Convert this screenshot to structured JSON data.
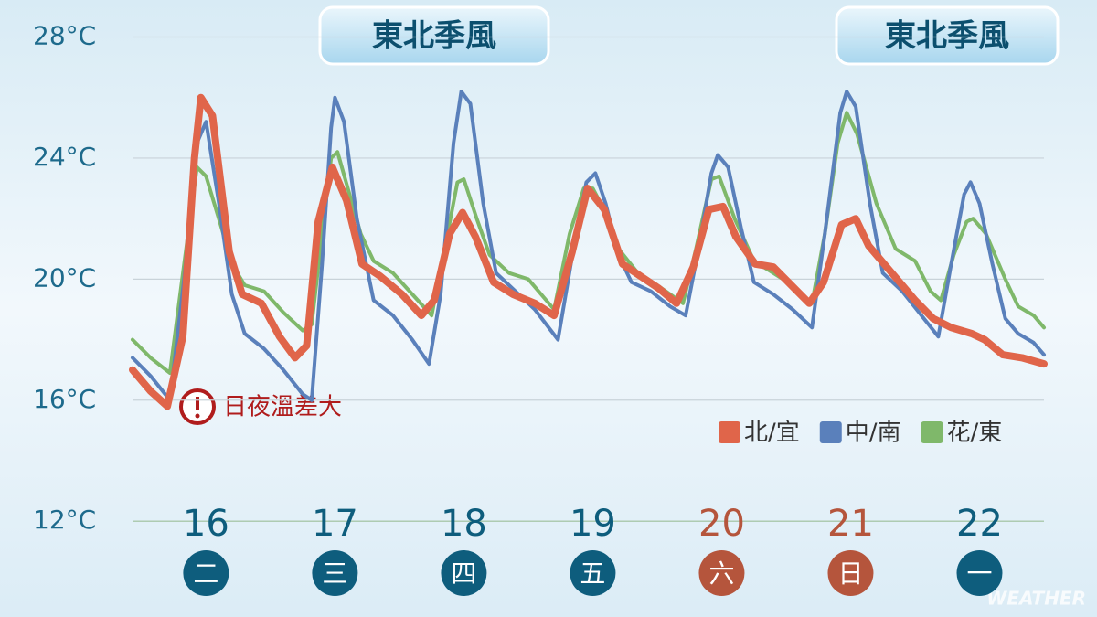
{
  "chart_data": {
    "type": "line",
    "annotations": [
      "東北季風",
      "東北季風"
    ],
    "note": "日夜溫差大",
    "watermark": "WEATHER",
    "xlim": [
      15.43,
      22.5
    ],
    "xticks": [
      16,
      17,
      18,
      19,
      20,
      21,
      22
    ],
    "weekdays": [
      "二",
      "三",
      "四",
      "五",
      "六",
      "日",
      "一"
    ],
    "weekday_colors": [
      "#0e5d7d",
      "#0e5d7d",
      "#0e5d7d",
      "#0e5d7d",
      "#b5553c",
      "#b5553c",
      "#0e5d7d"
    ],
    "ylim": [
      11.1,
      28.62
    ],
    "yticks": [
      {
        "value": 28,
        "label": "28°C"
      },
      {
        "value": 24,
        "label": "24°C"
      },
      {
        "value": 20,
        "label": "20°C"
      },
      {
        "value": 16,
        "label": "16°C"
      },
      {
        "value": 12,
        "label": "12°C"
      }
    ],
    "grid": true,
    "legend": "lower right",
    "series": [
      {
        "name": "北/宜",
        "color": "#e0654a",
        "x": [
          15.43,
          15.57,
          15.7,
          15.82,
          15.91,
          15.96,
          16.05,
          16.18,
          16.28,
          16.43,
          16.57,
          16.69,
          16.78,
          16.87,
          16.98,
          17.09,
          17.21,
          17.35,
          17.52,
          17.67,
          17.77,
          17.89,
          17.99,
          18.09,
          18.23,
          18.38,
          18.55,
          18.7,
          18.84,
          18.96,
          19.09,
          19.23,
          19.37,
          19.51,
          19.65,
          19.78,
          19.9,
          20.01,
          20.11,
          20.26,
          20.4,
          20.54,
          20.68,
          20.79,
          20.93,
          21.04,
          21.14,
          21.32,
          21.5,
          21.64,
          21.78,
          21.94,
          22.04,
          22.18,
          22.33,
          22.5
        ],
        "values": [
          17.0,
          16.3,
          15.8,
          18.1,
          24.0,
          26.0,
          25.4,
          20.9,
          19.5,
          19.2,
          18.1,
          17.4,
          17.8,
          21.9,
          23.7,
          22.6,
          20.5,
          20.1,
          19.5,
          18.8,
          19.3,
          21.5,
          22.2,
          21.4,
          19.9,
          19.5,
          19.2,
          18.8,
          20.9,
          23.0,
          22.3,
          20.5,
          20.1,
          19.7,
          19.2,
          20.4,
          22.3,
          22.4,
          21.4,
          20.5,
          20.4,
          19.8,
          19.2,
          19.9,
          21.8,
          22.0,
          21.1,
          20.2,
          19.3,
          18.7,
          18.4,
          18.2,
          18.0,
          17.5,
          17.4,
          17.2
        ]
      },
      {
        "name": "中/南",
        "color": "#5a80bb",
        "x": [
          15.43,
          15.57,
          15.72,
          15.83,
          15.93,
          16.0,
          16.1,
          16.2,
          16.3,
          16.45,
          16.6,
          16.75,
          16.82,
          16.9,
          16.97,
          17.0,
          17.07,
          17.17,
          17.3,
          17.45,
          17.6,
          17.73,
          17.82,
          17.92,
          17.98,
          18.05,
          18.15,
          18.25,
          18.4,
          18.55,
          18.73,
          18.85,
          18.95,
          19.02,
          19.1,
          19.2,
          19.3,
          19.45,
          19.6,
          19.72,
          19.82,
          19.92,
          19.97,
          20.05,
          20.15,
          20.25,
          20.4,
          20.55,
          20.7,
          20.8,
          20.92,
          20.97,
          21.04,
          21.15,
          21.25,
          21.4,
          21.55,
          21.68,
          21.78,
          21.88,
          21.93,
          22.0,
          22.1,
          22.2,
          22.3,
          22.42,
          22.5
        ],
        "values": [
          17.4,
          16.8,
          16.0,
          20.0,
          24.5,
          25.2,
          22.5,
          19.5,
          18.2,
          17.7,
          17.0,
          16.2,
          16.0,
          20.5,
          25.0,
          26.0,
          25.2,
          22.0,
          19.3,
          18.8,
          18.0,
          17.2,
          19.5,
          24.5,
          26.2,
          25.8,
          22.5,
          20.2,
          19.6,
          19.0,
          18.0,
          21.0,
          23.2,
          23.5,
          22.5,
          20.8,
          19.9,
          19.6,
          19.1,
          18.8,
          21.0,
          23.5,
          24.1,
          23.7,
          21.7,
          19.9,
          19.5,
          19.0,
          18.4,
          21.5,
          25.5,
          26.2,
          25.7,
          22.5,
          20.2,
          19.6,
          18.8,
          18.1,
          20.5,
          22.8,
          23.2,
          22.5,
          20.5,
          18.7,
          18.2,
          17.9,
          17.5
        ]
      },
      {
        "name": "花/東",
        "color": "#7fb86a",
        "x": [
          15.43,
          15.57,
          15.72,
          15.83,
          15.93,
          16.0,
          16.12,
          16.2,
          16.3,
          16.45,
          16.6,
          16.75,
          16.82,
          16.9,
          16.97,
          17.02,
          17.1,
          17.2,
          17.3,
          17.45,
          17.6,
          17.75,
          17.85,
          17.95,
          18.0,
          18.1,
          18.2,
          18.35,
          18.5,
          18.7,
          18.82,
          18.93,
          19.0,
          19.1,
          19.2,
          19.35,
          19.5,
          19.7,
          19.8,
          19.92,
          19.98,
          20.1,
          20.25,
          20.4,
          20.55,
          20.7,
          20.8,
          20.9,
          20.97,
          21.05,
          21.2,
          21.35,
          21.5,
          21.62,
          21.7,
          21.8,
          21.9,
          21.95,
          22.05,
          22.2,
          22.3,
          22.42,
          22.5
        ],
        "values": [
          18.0,
          17.4,
          16.9,
          20.5,
          23.7,
          23.4,
          21.7,
          20.5,
          19.8,
          19.6,
          18.9,
          18.3,
          18.5,
          21.5,
          24.0,
          24.2,
          23.0,
          21.5,
          20.6,
          20.2,
          19.5,
          18.8,
          21.0,
          23.2,
          23.3,
          22.0,
          20.8,
          20.2,
          20.0,
          19.0,
          21.5,
          23.0,
          23.0,
          22.2,
          21.0,
          20.2,
          19.8,
          19.2,
          21.0,
          23.3,
          23.4,
          22.0,
          20.6,
          20.2,
          19.8,
          19.2,
          21.5,
          24.5,
          25.5,
          24.8,
          22.5,
          21.0,
          20.6,
          19.6,
          19.3,
          20.8,
          21.9,
          22.0,
          21.5,
          20.0,
          19.1,
          18.8,
          18.4
        ]
      }
    ]
  }
}
